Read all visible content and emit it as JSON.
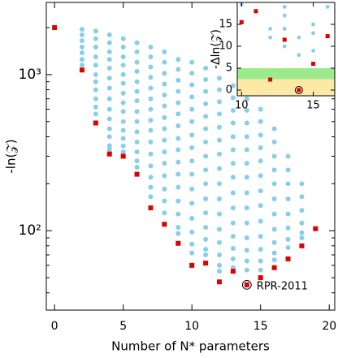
{
  "chart_data": [
    {
      "type": "scatter",
      "xlabel": "Number of N* parameters",
      "ylabel": "-ln(𝒵)",
      "log_y": true,
      "xlim": [
        -0.6,
        20.4
      ],
      "ylim": [
        31,
        2900
      ],
      "xticks": [
        0,
        5,
        10,
        15,
        20
      ],
      "yticks": [
        {
          "value": 100,
          "label": "10²"
        },
        {
          "value": 1000,
          "label": "10³"
        }
      ],
      "yminorticks": [
        40,
        50,
        60,
        70,
        80,
        90,
        200,
        300,
        400,
        500,
        600,
        700,
        800,
        900,
        2000
      ],
      "series": [
        {
          "color": "#87ceeb",
          "marker": "circle",
          "x": [
            2,
            3,
            4,
            5,
            6,
            7,
            8,
            9,
            10,
            11,
            12,
            13,
            14,
            15,
            16,
            17,
            18
          ],
          "values": [
            [
              1950,
              1800,
              1650,
              1500,
              1380,
              1250,
              1150
            ],
            [
              1900,
              1700,
              1500,
              1300,
              1150,
              1000,
              900,
              800,
              700,
              620,
              560
            ],
            [
              1800,
              1600,
              1400,
              1250,
              1100,
              950,
              820,
              700,
              600,
              520,
              450,
              400,
              350,
              330
            ],
            [
              1700,
              1500,
              1300,
              1150,
              1000,
              880,
              760,
              660,
              580,
              500,
              440,
              390,
              350,
              320
            ],
            [
              1600,
              1400,
              1200,
              1050,
              900,
              780,
              680,
              580,
              500,
              430,
              370,
              320,
              280,
              255
            ],
            [
              1500,
              1300,
              1120,
              960,
              820,
              700,
              600,
              510,
              440,
              370,
              310,
              260,
              220,
              190,
              165
            ],
            [
              1400,
              1200,
              1020,
              870,
              740,
              630,
              530,
              450,
              380,
              320,
              270,
              225,
              185,
              155,
              130
            ],
            [
              1250,
              1080,
              920,
              780,
              660,
              560,
              470,
              390,
              330,
              275,
              230,
              190,
              155,
              128,
              105,
              96
            ],
            [
              1200,
              1020,
              860,
              720,
              600,
              500,
              410,
              340,
              280,
              230,
              185,
              150,
              120,
              98,
              82,
              72
            ],
            [
              1100,
              930,
              780,
              650,
              540,
              450,
              370,
              300,
              245,
              200,
              160,
              130,
              105,
              88,
              76,
              70
            ],
            [
              950,
              800,
              670,
              560,
              460,
              380,
              310,
              250,
              200,
              160,
              128,
              102,
              84,
              70,
              60,
              55
            ],
            [
              850,
              710,
              590,
              490,
              400,
              330,
              270,
              220,
              175,
              140,
              112,
              92,
              77,
              66,
              58
            ],
            [
              700,
              590,
              490,
              400,
              330,
              270,
              220,
              175,
              140,
              112,
              90,
              75,
              64,
              56
            ],
            [
              600,
              500,
              410,
              340,
              280,
              225,
              180,
              145,
              115,
              92,
              76,
              64,
              56
            ],
            [
              450,
              370,
              300,
              245,
              200,
              160,
              128,
              102,
              84,
              72,
              65
            ],
            [
              300,
              245,
              200,
              160,
              128,
              104,
              88,
              78
            ],
            [
              200,
              165,
              135,
              112,
              97,
              90
            ]
          ]
        },
        {
          "color": "#e00000",
          "marker": "square",
          "x": [
            0,
            2,
            3,
            4,
            5,
            6,
            7,
            8,
            9,
            10,
            11,
            12,
            13,
            14,
            15,
            16,
            17,
            18,
            19
          ],
          "values": [
            2000,
            1070,
            490,
            310,
            300,
            230,
            140,
            110,
            83,
            60,
            62,
            47,
            55,
            45,
            50,
            58,
            66,
            80,
            103
          ]
        }
      ],
      "annotation": {
        "text": "RPR-2011",
        "x": 14,
        "y": 45
      }
    },
    {
      "type": "scatter",
      "ylabel": "-Δln(𝒵)",
      "xlim": [
        9.7,
        16.5
      ],
      "ylim": [
        -1.3,
        20
      ],
      "xticks": [
        10,
        15
      ],
      "yticks": [
        0,
        5,
        10,
        15
      ],
      "bands": [
        {
          "range": [
            -1.3,
            2.5
          ],
          "color": "#fde9a6"
        },
        {
          "range": [
            2.5,
            5
          ],
          "color": "#9bea8c"
        }
      ],
      "series": [
        {
          "color": "#87ceeb",
          "marker": "circle",
          "x": [
            10,
            12,
            12,
            13,
            13,
            13,
            13,
            14,
            14,
            15,
            15,
            15,
            16
          ],
          "values": [
            19.5,
            14,
            12,
            19,
            17,
            14,
            10,
            8,
            12,
            15,
            9,
            13,
            19
          ]
        },
        {
          "color": "#e00000",
          "marker": "square",
          "x": [
            10,
            11,
            12,
            13,
            14,
            15,
            16
          ],
          "values": [
            15.5,
            18,
            2.4,
            11.5,
            0,
            6,
            12.3
          ]
        }
      ],
      "annotation": {
        "x": 14,
        "y": 0
      }
    }
  ]
}
